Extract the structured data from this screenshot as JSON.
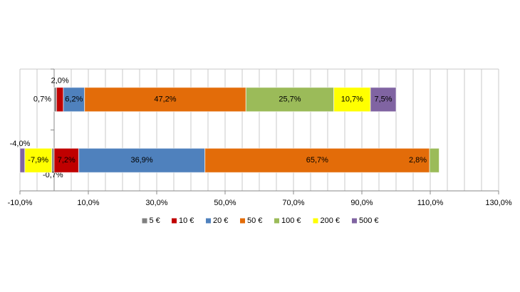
{
  "chart_data": {
    "type": "stacked_barh",
    "categories": [
      null,
      null
    ],
    "series": [
      {
        "name": "5 €",
        "color": "#808080",
        "values": [
          0.7,
          -0.7
        ],
        "value_labels": [
          "0,7%",
          "-0,7%"
        ]
      },
      {
        "name": "10 €",
        "color": "#c00000",
        "values": [
          2.0,
          7.2
        ],
        "value_labels": [
          "2,0%",
          "7,2%"
        ]
      },
      {
        "name": "20 €",
        "color": "#4f81bd",
        "values": [
          6.2,
          36.9
        ],
        "value_labels": [
          "6,2%",
          "36,9%"
        ]
      },
      {
        "name": "50 €",
        "color": "#e36c09",
        "values": [
          47.2,
          65.7
        ],
        "value_labels": [
          "47,2%",
          "65,7%"
        ]
      },
      {
        "name": "100 €",
        "color": "#9bbb59",
        "values": [
          25.7,
          2.8
        ],
        "value_labels": [
          "25,7%",
          "2,8%"
        ]
      },
      {
        "name": "200 €",
        "color": "#ffff00",
        "values": [
          10.7,
          -7.9
        ],
        "value_labels": [
          "10,7%",
          "-7,9%"
        ]
      },
      {
        "name": "500 €",
        "color": "#8064a2",
        "values": [
          7.5,
          -4.0
        ],
        "value_labels": [
          "7,5%",
          "-4,0%"
        ]
      }
    ],
    "xlim": [
      -10,
      130
    ],
    "xticks": [
      {
        "value": -10,
        "label": "-10,0%"
      },
      {
        "value": 10,
        "label": "10,0%"
      },
      {
        "value": 30,
        "label": "30,0%"
      },
      {
        "value": 50,
        "label": "50,0%"
      },
      {
        "value": 70,
        "label": "70,0%"
      },
      {
        "value": 90,
        "label": "90,0%"
      },
      {
        "value": 110,
        "label": "110,0%"
      },
      {
        "value": 130,
        "label": "130,0%"
      }
    ],
    "minor_xticks": [
      -5,
      0,
      5,
      15,
      20,
      25,
      35,
      40,
      45,
      55,
      60,
      65,
      75,
      80,
      85,
      95,
      100,
      105,
      115,
      120,
      125
    ],
    "grid": true,
    "legend": "bottom"
  }
}
